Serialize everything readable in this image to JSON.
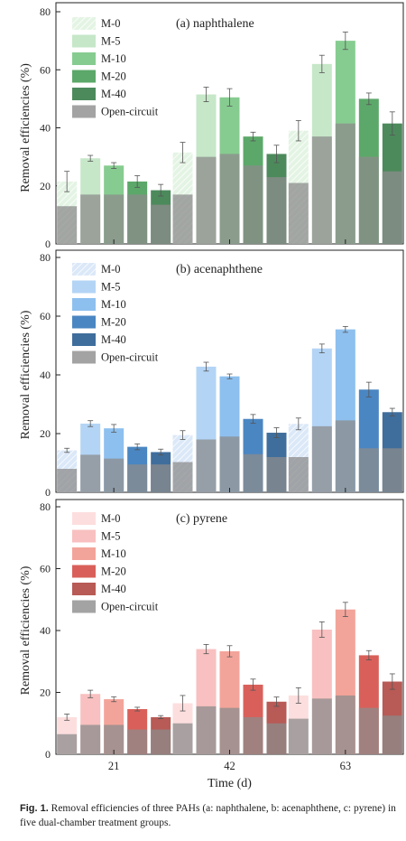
{
  "chart_data": [
    {
      "type": "bar",
      "title": "(a) naphthalene",
      "ylabel": "Removal efficiencies (%)",
      "ylim": [
        0,
        80
      ],
      "yticks": [
        0,
        20,
        40,
        60,
        80
      ],
      "series": [
        {
          "name": "M-0",
          "color": "#e4f4e4",
          "pattern": "hatch",
          "values": [
            21.5,
            31.5,
            39
          ],
          "errors": [
            3.5,
            3.5,
            3.5
          ]
        },
        {
          "name": "M-5",
          "color": "#c6e7c8",
          "values": [
            29.5,
            51.5,
            62
          ],
          "errors": [
            1,
            2.5,
            3
          ]
        },
        {
          "name": "M-10",
          "color": "#86cc90",
          "values": [
            27,
            50.5,
            70
          ],
          "errors": [
            1,
            3,
            3
          ]
        },
        {
          "name": "M-20",
          "color": "#5ca86a",
          "values": [
            21.5,
            37,
            50
          ],
          "errors": [
            2,
            1.5,
            2
          ]
        },
        {
          "name": "M-40",
          "color": "#4c8a5c",
          "values": [
            18.5,
            31,
            41.5
          ],
          "errors": [
            2,
            3,
            4
          ]
        },
        {
          "name": "Open-circuit",
          "color": "#8c8c8c",
          "values": [
            [
              13,
              17,
              17,
              17,
              13.5
            ],
            [
              17,
              30,
              31,
              27,
              23
            ],
            [
              21,
              37,
              41.5,
              30,
              25
            ]
          ]
        }
      ]
    },
    {
      "type": "bar",
      "title": "(b) acenaphthene",
      "ylabel": "Removal efficiencies (%)",
      "ylim": [
        0,
        80
      ],
      "yticks": [
        0,
        20,
        40,
        60,
        80
      ],
      "series": [
        {
          "name": "M-0",
          "color": "#dbe8f8",
          "pattern": "hatch",
          "values": [
            14.3,
            19.5,
            23.3
          ],
          "errors": [
            0.7,
            1.5,
            2
          ]
        },
        {
          "name": "M-5",
          "color": "#b3d4f5",
          "values": [
            23.4,
            42.8,
            49
          ],
          "errors": [
            1,
            1.5,
            1.5
          ]
        },
        {
          "name": "M-10",
          "color": "#8dc0ef",
          "values": [
            21.8,
            39.5,
            55.5
          ],
          "errors": [
            1.3,
            0.8,
            1
          ]
        },
        {
          "name": "M-20",
          "color": "#4a86c2",
          "values": [
            15.5,
            25,
            35
          ],
          "errors": [
            1,
            1.5,
            2.5
          ]
        },
        {
          "name": "M-40",
          "color": "#3f6e9c",
          "values": [
            13.7,
            20.3,
            27.3
          ],
          "errors": [
            1,
            1.7,
            1.3
          ]
        },
        {
          "name": "Open-circuit",
          "color": "#8c8c8c",
          "values": [
            [
              8,
              12.8,
              11.5,
              9.5,
              9.5
            ],
            [
              10.3,
              18,
              19,
              13,
              12
            ],
            [
              12,
              22.5,
              24.5,
              15,
              15
            ]
          ]
        }
      ]
    },
    {
      "type": "bar",
      "title": "(c) pyrene",
      "ylabel": "Removal efficiencies (%)",
      "xlabel": "Time (d)",
      "categories": [
        "21",
        "42",
        "63"
      ],
      "ylim": [
        0,
        80
      ],
      "yticks": [
        0,
        20,
        40,
        60,
        80
      ],
      "series": [
        {
          "name": "M-0",
          "color": "#fddede",
          "values": [
            12,
            16.5,
            19
          ],
          "errors": [
            1,
            2.5,
            2.5
          ]
        },
        {
          "name": "M-5",
          "color": "#f8c0c0",
          "values": [
            19.5,
            34,
            40.3
          ],
          "errors": [
            1.2,
            1.5,
            2.5
          ]
        },
        {
          "name": "M-10",
          "color": "#f3a49a",
          "values": [
            17.8,
            33.3,
            46.8
          ],
          "errors": [
            0.8,
            1.8,
            2.3
          ]
        },
        {
          "name": "M-20",
          "color": "#d9605a",
          "values": [
            14.6,
            22.5,
            32
          ],
          "errors": [
            0.6,
            1.8,
            1.5
          ]
        },
        {
          "name": "M-40",
          "color": "#b85a55",
          "values": [
            12,
            17,
            23.5
          ],
          "errors": [
            0.5,
            1.5,
            2.5
          ]
        },
        {
          "name": "Open-circuit",
          "color": "#8c8c8c",
          "values": [
            [
              6.5,
              9.5,
              9.5,
              8,
              8
            ],
            [
              10,
              15.5,
              15,
              12,
              10
            ],
            [
              11.5,
              18,
              19,
              15,
              12.5
            ]
          ]
        }
      ]
    }
  ],
  "caption": {
    "label": "Fig. 1.",
    "text": "Removal efficiencies of three PAHs (a: naphthalene, b: acenaphthene, c: pyrene) in five dual-chamber treatment groups."
  }
}
